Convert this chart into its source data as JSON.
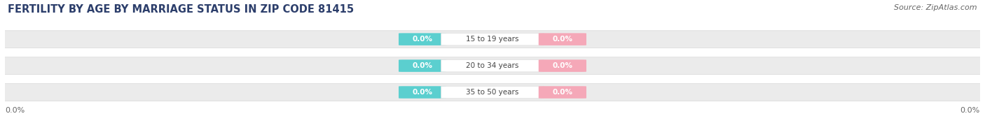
{
  "title": "FERTILITY BY AGE BY MARRIAGE STATUS IN ZIP CODE 81415",
  "source": "Source: ZipAtlas.com",
  "categories": [
    "35 to 50 years",
    "20 to 34 years",
    "15 to 19 years"
  ],
  "married_values": [
    0.0,
    0.0,
    0.0
  ],
  "unmarried_values": [
    0.0,
    0.0,
    0.0
  ],
  "married_color": "#5bcfcf",
  "unmarried_color": "#f5a8b8",
  "bar_bg_color": "#ebebeb",
  "bar_bg_edge_color": "#d8d8d8",
  "title_fontsize": 10.5,
  "source_fontsize": 8,
  "label_fontsize": 7.5,
  "cat_fontsize": 7.5,
  "tick_fontsize": 8,
  "bar_height": 0.62,
  "fig_bg_color": "#ffffff",
  "title_color": "#2c3e6b",
  "xlim_left": -1.0,
  "xlim_right": 1.0
}
